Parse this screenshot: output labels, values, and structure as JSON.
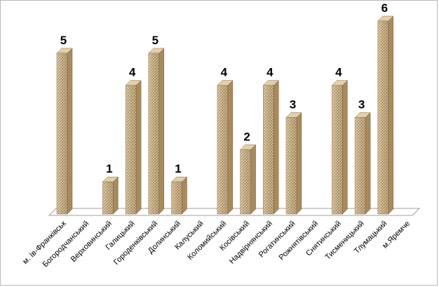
{
  "chart_data": {
    "type": "bar",
    "title": "",
    "xlabel": "",
    "ylabel": "",
    "ylim": [
      0,
      6
    ],
    "grid": false,
    "legend": "none",
    "categories": [
      "м. Ів-Франківськ",
      "Богородчанський",
      "Верховинський",
      "Галицький",
      "Городенківський",
      "Долинський",
      "Калуський",
      "Коломийський",
      "Косівський",
      "Надвірнянський",
      "Рогатинський",
      "Рожнятівський",
      "Снятинський",
      "Тисменицький",
      "Тлумацький",
      "м.Яремче"
    ],
    "values": [
      5,
      0,
      1,
      4,
      5,
      1,
      0,
      4,
      2,
      4,
      3,
      0,
      4,
      3,
      6,
      0
    ],
    "data_labels": [
      "5",
      "",
      "1",
      "4",
      "5",
      "1",
      "",
      "4",
      "2",
      "4",
      "3",
      "",
      "4",
      "3",
      "6",
      ""
    ],
    "colors": {
      "bar_front": "#c8a878",
      "bar_side": "#a88a5c",
      "bar_top": "#e3d0a8",
      "floor": "#ffffff",
      "floor_edge": "#a0a0a0"
    }
  }
}
